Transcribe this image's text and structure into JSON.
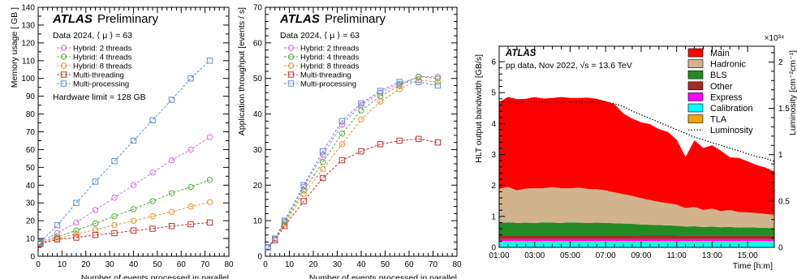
{
  "chart_data": [
    {
      "type": "line",
      "panel": "memory",
      "atlas_label": "ATLAS",
      "status": "Preliminary",
      "dataset": "Data 2024, ⟨ μ ⟩ = 63",
      "xlabel": "Number of events processed in parallel",
      "ylabel": "Memory usage [ GB ]",
      "xlim": [
        0,
        80
      ],
      "ylim": [
        0,
        140
      ],
      "xticks": [
        0,
        10,
        20,
        30,
        40,
        50,
        60,
        70,
        80
      ],
      "yticks": [
        0,
        10,
        20,
        30,
        40,
        50,
        60,
        70,
        80,
        90,
        100,
        110,
        120,
        130,
        140
      ],
      "annotation": "Hardware limit = 128 GB",
      "x": [
        1,
        8,
        16,
        24,
        32,
        40,
        48,
        56,
        64,
        72
      ],
      "series": [
        {
          "name": "Hybrid: 2 threads",
          "color": "#d66fd6",
          "marker": "circle",
          "values": [
            8,
            13,
            19,
            26,
            33,
            40,
            47,
            54,
            60,
            67
          ]
        },
        {
          "name": "Hybrid: 4 threads",
          "color": "#4caf3a",
          "marker": "circle",
          "values": [
            7.5,
            11,
            14.5,
            18.5,
            22.5,
            26.5,
            31,
            35.5,
            39,
            43
          ]
        },
        {
          "name": "Hybrid: 8 threads",
          "color": "#f0902a",
          "marker": "circle",
          "values": [
            7,
            10,
            12.5,
            15,
            17.5,
            20,
            22.5,
            25,
            28,
            30.5
          ]
        },
        {
          "name": "Multi-threading",
          "color": "#c03030",
          "marker": "square",
          "values": [
            7,
            9.5,
            10.5,
            12,
            13,
            14.5,
            15.5,
            17,
            18,
            19
          ]
        },
        {
          "name": "Multi-processing",
          "color": "#5b8fd6",
          "marker": "square",
          "values": [
            8,
            17.5,
            30,
            42,
            53.5,
            65,
            76.5,
            88,
            100,
            110
          ]
        }
      ]
    },
    {
      "type": "line",
      "panel": "throughput",
      "atlas_label": "ATLAS",
      "status": "Preliminary",
      "dataset": "Data 2024, ⟨ μ ⟩ = 63",
      "xlabel": "Number of events processed in parallel",
      "ylabel": "Application throughput [events / s]",
      "xlim": [
        0,
        80
      ],
      "ylim": [
        0,
        70
      ],
      "xticks": [
        0,
        10,
        20,
        30,
        40,
        50,
        60,
        70,
        80
      ],
      "yticks": [
        0,
        10,
        20,
        30,
        40,
        50,
        60,
        70
      ],
      "x": [
        1,
        4,
        8,
        16,
        24,
        32,
        40,
        48,
        56,
        64,
        72
      ],
      "series": [
        {
          "name": "Hybrid: 2 threads",
          "color": "#d66fd6",
          "marker": "circle",
          "values": [
            2.5,
            5,
            10,
            19.5,
            28.5,
            37,
            42.5,
            46,
            48.5,
            50.5,
            50.5
          ]
        },
        {
          "name": "Hybrid: 4 threads",
          "color": "#4caf3a",
          "marker": "circle",
          "values": [
            2.5,
            5,
            9.5,
            18.5,
            26.5,
            34.5,
            41,
            45,
            48,
            50.5,
            50
          ]
        },
        {
          "name": "Hybrid: 8 threads",
          "color": "#f0902a",
          "marker": "circle",
          "values": [
            2.5,
            5,
            9,
            17.5,
            24.5,
            31.5,
            38.5,
            43.5,
            47,
            49.5,
            49
          ]
        },
        {
          "name": "Multi-threading",
          "color": "#c03030",
          "marker": "square",
          "values": [
            2.5,
            4.5,
            8.5,
            15.5,
            22,
            27,
            29.5,
            31.5,
            32.5,
            33,
            32
          ]
        },
        {
          "name": "Multi-processing",
          "color": "#5b8fd6",
          "marker": "square",
          "values": [
            2.5,
            5,
            10,
            20,
            29.5,
            38,
            43,
            46.5,
            49,
            49,
            48
          ]
        }
      ]
    },
    {
      "type": "area",
      "panel": "bandwidth",
      "atlas_label": "ATLAS",
      "dataset": "pp data, Nov 2022, √s = 13.6 TeV",
      "xlabel": "Time [h:m]",
      "ylabel": "HLT output bandwidth [GB/s]",
      "y2label": "Luminosity [cm⁻²cm⁻¹]",
      "y2_exponent": "×10³⁴",
      "xlim": [
        0,
        15.5
      ],
      "ylim": [
        0,
        6.5
      ],
      "y2lim": [
        0,
        2.17
      ],
      "xticks": [
        0,
        2,
        4,
        6,
        8,
        10,
        12,
        14
      ],
      "xticklabels": [
        "01:00",
        "03:00",
        "05:00",
        "07:00",
        "09:00",
        "11:00",
        "13:00",
        "15:00"
      ],
      "yticks": [
        0,
        1,
        2,
        3,
        4,
        5,
        6
      ],
      "y2ticks": [
        0,
        0.5,
        1,
        1.5,
        2
      ],
      "x": [
        0,
        0.5,
        1,
        1.5,
        2,
        2.5,
        3,
        3.5,
        4,
        4.5,
        5,
        5.5,
        6,
        6.5,
        7,
        7.5,
        8,
        8.5,
        9,
        9.5,
        10,
        10.5,
        11,
        11.5,
        12,
        12.5,
        13,
        13.5,
        14,
        14.5,
        15,
        15.5
      ],
      "stack": [
        {
          "name": "Calibration",
          "color": "#00ffff",
          "values": [
            0.17,
            0.17,
            0.17,
            0.17,
            0.17,
            0.17,
            0.17,
            0.17,
            0.17,
            0.17,
            0.17,
            0.17,
            0.17,
            0.17,
            0.17,
            0.17,
            0.17,
            0.17,
            0.17,
            0.17,
            0.17,
            0.17,
            0.17,
            0.17,
            0.17,
            0.17,
            0.17,
            0.17,
            0.17,
            0.17,
            0.17,
            0.17
          ]
        },
        {
          "name": "TLA",
          "color": "#f5a300",
          "values": [
            0.04,
            0.04,
            0.04,
            0.04,
            0.04,
            0.04,
            0.04,
            0.04,
            0.04,
            0.04,
            0.04,
            0.04,
            0.04,
            0.04,
            0.04,
            0.04,
            0.04,
            0.04,
            0.04,
            0.04,
            0.04,
            0.04,
            0.04,
            0.04,
            0.04,
            0.04,
            0.04,
            0.04,
            0.04,
            0.04,
            0.04,
            0.04
          ]
        },
        {
          "name": "Express",
          "color": "#ff00ff",
          "values": [
            0.06,
            0.06,
            0.06,
            0.06,
            0.06,
            0.06,
            0.06,
            0.06,
            0.06,
            0.06,
            0.06,
            0.06,
            0.06,
            0.06,
            0.06,
            0.06,
            0.06,
            0.06,
            0.06,
            0.06,
            0.06,
            0.06,
            0.06,
            0.06,
            0.06,
            0.06,
            0.06,
            0.06,
            0.06,
            0.06,
            0.06,
            0.06
          ]
        },
        {
          "name": "Other",
          "color": "#a52a2a",
          "values": [
            0.12,
            0.12,
            0.12,
            0.12,
            0.12,
            0.12,
            0.12,
            0.12,
            0.12,
            0.12,
            0.12,
            0.12,
            0.12,
            0.12,
            0.12,
            0.12,
            0.11,
            0.11,
            0.11,
            0.11,
            0.11,
            0.1,
            0.1,
            0.1,
            0.1,
            0.1,
            0.1,
            0.1,
            0.1,
            0.1,
            0.1,
            0.1
          ]
        },
        {
          "name": "BLS",
          "color": "#238b23",
          "values": [
            0.4,
            0.42,
            0.4,
            0.41,
            0.4,
            0.42,
            0.41,
            0.4,
            0.42,
            0.41,
            0.4,
            0.41,
            0.4,
            0.39,
            0.38,
            0.37,
            0.36,
            0.35,
            0.34,
            0.33,
            0.32,
            0.3,
            0.31,
            0.29,
            0.3,
            0.28,
            0.29,
            0.27,
            0.28,
            0.27,
            0.26,
            0.25
          ]
        },
        {
          "name": "Hadronic",
          "color": "#d2b48c",
          "values": [
            1.1,
            1.15,
            1.05,
            1.1,
            1.12,
            1.1,
            1.15,
            1.12,
            1.1,
            1.13,
            1.1,
            1.08,
            1.05,
            1.0,
            0.95,
            0.9,
            0.85,
            0.8,
            0.75,
            0.72,
            0.68,
            0.6,
            0.63,
            0.55,
            0.58,
            0.52,
            0.55,
            0.5,
            0.48,
            0.47,
            0.45,
            0.43
          ]
        },
        {
          "name": "Main",
          "color": "#ff0000",
          "values": [
            2.8,
            2.9,
            2.95,
            2.9,
            2.95,
            2.9,
            2.88,
            2.95,
            2.92,
            2.9,
            2.95,
            2.92,
            2.88,
            2.85,
            2.6,
            2.5,
            2.45,
            2.45,
            2.35,
            2.3,
            2.1,
            1.65,
            2.15,
            2.0,
            2.05,
            1.95,
            1.7,
            1.75,
            1.65,
            1.55,
            1.5,
            1.4
          ]
        }
      ],
      "lumi_line": {
        "name": "Luminosity",
        "style": "dotted",
        "values": [
          1.57,
          1.57,
          1.57,
          1.57,
          1.57,
          1.57,
          1.57,
          1.57,
          1.57,
          1.57,
          1.57,
          1.57,
          1.57,
          1.55,
          1.52,
          1.47,
          1.43,
          1.39,
          1.35,
          1.31,
          1.27,
          1.23,
          1.19,
          1.16,
          1.13,
          1.1,
          1.07,
          1.04,
          1.01,
          0.98,
          0.96,
          0.93
        ]
      },
      "legend": [
        "Main",
        "Hadronic",
        "BLS",
        "Other",
        "Express",
        "Calibration",
        "TLA",
        "Luminosity"
      ],
      "legend_position": "top-right"
    }
  ]
}
